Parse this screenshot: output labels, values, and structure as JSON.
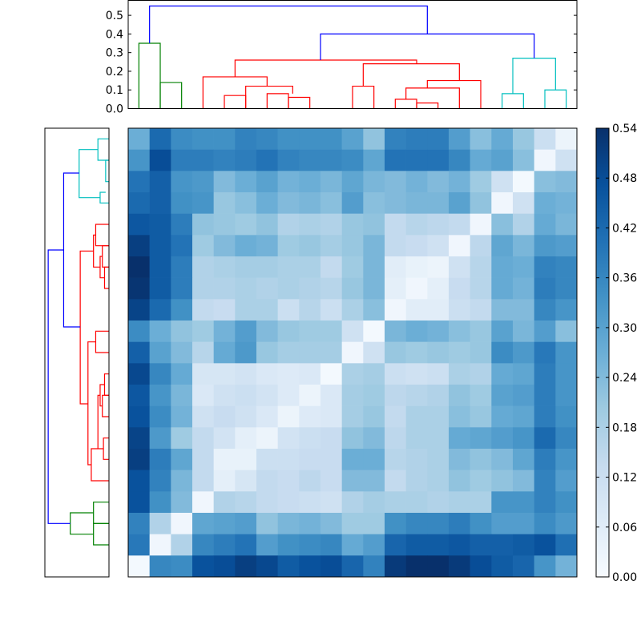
{
  "chart_data": {
    "type": "heatmap",
    "title": "",
    "xlabel": "",
    "ylabel": "",
    "colormap": "Blues",
    "n": 21,
    "colorbar": {
      "range": [
        0.0,
        0.54
      ],
      "ticks": [
        "0.00",
        "0.06",
        "0.12",
        "0.18",
        "0.24",
        "0.30",
        "0.36",
        "0.42",
        "0.48",
        "0.54"
      ]
    },
    "top_dendrogram": {
      "ylim": [
        0.0,
        0.58
      ],
      "ticks": [
        "0.0",
        "0.1",
        "0.2",
        "0.3",
        "0.4",
        "0.5"
      ],
      "links": [
        {
          "lx": 0.5,
          "ly": 0.0,
          "rx": 1.5,
          "ry": 0.0,
          "h": 0.35,
          "color": "#008000"
        },
        {
          "lx": 1.5,
          "ly": 0.0,
          "rx": 2.5,
          "ry": 0.0,
          "h": 0.14,
          "color": "#008000"
        },
        {
          "lx": 4.5,
          "ly": 0.0,
          "rx": 5.5,
          "ry": 0.0,
          "h": 0.07,
          "color": "#ff0000"
        },
        {
          "lx": 6.5,
          "ly": 0.0,
          "rx": 7.5,
          "ry": 0.0,
          "h": 0.08,
          "color": "#ff0000"
        },
        {
          "lx": 7.5,
          "ly": 0.0,
          "rx": 8.5,
          "ry": 0.0,
          "h": 0.06,
          "color": "#ff0000"
        },
        {
          "lx": 5.5,
          "ly": 0.0,
          "rx": 7.7,
          "ry": 0.08,
          "h": 0.12,
          "color": "#ff0000"
        },
        {
          "lx": 3.5,
          "ly": 0.0,
          "rx": 6.5,
          "ry": 0.12,
          "h": 0.17,
          "color": "#ff0000"
        },
        {
          "lx": 10.5,
          "ly": 0.0,
          "rx": 11.5,
          "ry": 0.0,
          "h": 0.12,
          "color": "#ff0000"
        },
        {
          "lx": 12.5,
          "ly": 0.0,
          "rx": 13.5,
          "ry": 0.0,
          "h": 0.05,
          "color": "#ff0000"
        },
        {
          "lx": 13.5,
          "ly": 0.0,
          "rx": 14.5,
          "ry": 0.0,
          "h": 0.03,
          "color": "#ff0000"
        },
        {
          "lx": 13.0,
          "ly": 0.05,
          "rx": 15.5,
          "ry": 0.0,
          "h": 0.11,
          "color": "#ff0000"
        },
        {
          "lx": 14.0,
          "ly": 0.11,
          "rx": 16.5,
          "ry": 0.0,
          "h": 0.15,
          "color": "#ff0000"
        },
        {
          "lx": 11.0,
          "ly": 0.12,
          "rx": 15.5,
          "ry": 0.15,
          "h": 0.24,
          "color": "#ff0000"
        },
        {
          "lx": 5.0,
          "ly": 0.17,
          "rx": 13.5,
          "ry": 0.24,
          "h": 0.26,
          "color": "#ff0000"
        },
        {
          "lx": 17.5,
          "ly": 0.0,
          "rx": 18.5,
          "ry": 0.0,
          "h": 0.08,
          "color": "#00bfbf"
        },
        {
          "lx": 19.5,
          "ly": 0.0,
          "rx": 20.5,
          "ry": 0.0,
          "h": 0.1,
          "color": "#00bfbf"
        },
        {
          "lx": 18.0,
          "ly": 0.08,
          "rx": 20.0,
          "ry": 0.1,
          "h": 0.27,
          "color": "#00bfbf"
        },
        {
          "lx": 9.0,
          "ly": 0.26,
          "rx": 19.0,
          "ry": 0.27,
          "h": 0.4,
          "color": "#0000ff"
        },
        {
          "lx": 1.0,
          "ly": 0.35,
          "rx": 14.0,
          "ry": 0.4,
          "h": 0.55,
          "color": "#0000ff"
        }
      ]
    },
    "left_dendrogram": {
      "xlim": [
        0.0,
        0.58
      ],
      "links": [
        {
          "a": 0.5,
          "ha": 0.0,
          "b": 1.5,
          "hb": 0.0,
          "h": 0.1,
          "color": "#00bfbf"
        },
        {
          "a": 1.5,
          "ha": 0.0,
          "b": 2.5,
          "hb": 0.0,
          "h": 0.03,
          "color": "#00bfbf"
        },
        {
          "a": 3.0,
          "ha": 0.03,
          "b": 3.5,
          "hb": 0.0,
          "h": 0.08,
          "color": "#00bfbf"
        },
        {
          "a": 1.0,
          "ha": 0.1,
          "b": 3.25,
          "hb": 0.08,
          "h": 0.27,
          "color": "#00bfbf"
        },
        {
          "a": 4.5,
          "ha": 0.0,
          "b": 5.5,
          "hb": 0.0,
          "h": 0.12,
          "color": "#ff0000"
        },
        {
          "a": 5.5,
          "ha": 0.0,
          "b": 6.5,
          "hb": 0.0,
          "h": 0.06,
          "color": "#ff0000"
        },
        {
          "a": 6.5,
          "ha": 0.0,
          "b": 7.5,
          "hb": 0.0,
          "h": 0.04,
          "color": "#ff0000"
        },
        {
          "a": 6.0,
          "ha": 0.06,
          "b": 7.0,
          "hb": 0.04,
          "h": 0.08,
          "color": "#ff0000"
        },
        {
          "a": 5.0,
          "ha": 0.12,
          "b": 6.5,
          "hb": 0.08,
          "h": 0.14,
          "color": "#ff0000"
        },
        {
          "a": 9.5,
          "ha": 0.0,
          "b": 10.5,
          "hb": 0.0,
          "h": 0.12,
          "color": "#ff0000"
        },
        {
          "a": 11.5,
          "ha": 0.0,
          "b": 12.5,
          "hb": 0.0,
          "h": 0.04,
          "color": "#ff0000"
        },
        {
          "a": 12.5,
          "ha": 0.0,
          "b": 13.5,
          "hb": 0.0,
          "h": 0.06,
          "color": "#ff0000"
        },
        {
          "a": 12.0,
          "ha": 0.04,
          "b": 13.0,
          "hb": 0.06,
          "h": 0.08,
          "color": "#ff0000"
        },
        {
          "a": 14.5,
          "ha": 0.0,
          "b": 15.5,
          "hb": 0.0,
          "h": 0.05,
          "color": "#ff0000"
        },
        {
          "a": 12.5,
          "ha": 0.08,
          "b": 15.0,
          "hb": 0.05,
          "h": 0.1,
          "color": "#ff0000"
        },
        {
          "a": 16.5,
          "ha": 0.0,
          "b": 15.0,
          "hb": 0.1,
          "h": 0.16,
          "color": "#ff0000"
        },
        {
          "a": 10.0,
          "ha": 0.12,
          "b": 15.75,
          "hb": 0.16,
          "h": 0.19,
          "color": "#ff0000"
        },
        {
          "a": 5.75,
          "ha": 0.14,
          "b": 12.9,
          "hb": 0.19,
          "h": 0.26,
          "color": "#ff0000"
        },
        {
          "a": 2.1,
          "ha": 0.27,
          "b": 9.3,
          "hb": 0.26,
          "h": 0.41,
          "color": "#0000ff"
        },
        {
          "a": 17.5,
          "ha": 0.0,
          "b": 18.5,
          "hb": 0.0,
          "h": 0.14,
          "color": "#008000"
        },
        {
          "a": 18.5,
          "ha": 0.0,
          "b": 19.5,
          "hb": 0.0,
          "h": 0.14,
          "color": "#008000"
        },
        {
          "a": 18.0,
          "ha": 0.14,
          "b": 19.0,
          "hb": 0.14,
          "h": 0.35,
          "color": "#008000"
        },
        {
          "a": 5.7,
          "ha": 0.41,
          "b": 18.5,
          "hb": 0.35,
          "h": 0.55,
          "color": "#0000ff"
        }
      ]
    },
    "matrix": [
      [
        0.27,
        0.42,
        0.35,
        0.34,
        0.34,
        0.37,
        0.36,
        0.34,
        0.34,
        0.34,
        0.3,
        0.22,
        0.37,
        0.38,
        0.38,
        0.31,
        0.23,
        0.28,
        0.21,
        0.12,
        0.03
      ],
      [
        0.33,
        0.48,
        0.38,
        0.38,
        0.37,
        0.38,
        0.4,
        0.37,
        0.36,
        0.36,
        0.35,
        0.29,
        0.4,
        0.4,
        0.4,
        0.36,
        0.28,
        0.3,
        0.23,
        0.02,
        0.11
      ],
      [
        0.4,
        0.44,
        0.33,
        0.32,
        0.24,
        0.27,
        0.3,
        0.26,
        0.27,
        0.25,
        0.29,
        0.25,
        0.24,
        0.26,
        0.24,
        0.26,
        0.2,
        0.11,
        0.01,
        0.23,
        0.24
      ],
      [
        0.42,
        0.44,
        0.34,
        0.33,
        0.21,
        0.23,
        0.27,
        0.24,
        0.25,
        0.23,
        0.31,
        0.23,
        0.24,
        0.25,
        0.25,
        0.3,
        0.22,
        0.02,
        0.11,
        0.27,
        0.26
      ],
      [
        0.46,
        0.45,
        0.38,
        0.22,
        0.21,
        0.2,
        0.22,
        0.17,
        0.18,
        0.17,
        0.21,
        0.22,
        0.14,
        0.16,
        0.15,
        0.14,
        0.02,
        0.23,
        0.17,
        0.28,
        0.25
      ],
      [
        0.51,
        0.45,
        0.4,
        0.2,
        0.24,
        0.27,
        0.26,
        0.2,
        0.21,
        0.19,
        0.21,
        0.25,
        0.14,
        0.13,
        0.11,
        0.02,
        0.15,
        0.29,
        0.25,
        0.32,
        0.31
      ],
      [
        0.54,
        0.45,
        0.38,
        0.17,
        0.18,
        0.19,
        0.19,
        0.18,
        0.18,
        0.14,
        0.2,
        0.25,
        0.06,
        0.04,
        0.03,
        0.11,
        0.16,
        0.28,
        0.27,
        0.37,
        0.36
      ],
      [
        0.53,
        0.45,
        0.38,
        0.17,
        0.17,
        0.18,
        0.17,
        0.18,
        0.17,
        0.16,
        0.21,
        0.25,
        0.05,
        0.02,
        0.05,
        0.13,
        0.16,
        0.28,
        0.26,
        0.38,
        0.36
      ],
      [
        0.5,
        0.42,
        0.34,
        0.14,
        0.13,
        0.18,
        0.18,
        0.12,
        0.16,
        0.12,
        0.18,
        0.23,
        0.02,
        0.06,
        0.06,
        0.12,
        0.14,
        0.24,
        0.24,
        0.36,
        0.33
      ],
      [
        0.35,
        0.27,
        0.22,
        0.2,
        0.26,
        0.31,
        0.24,
        0.21,
        0.2,
        0.2,
        0.11,
        0.01,
        0.25,
        0.27,
        0.26,
        0.23,
        0.21,
        0.3,
        0.25,
        0.31,
        0.23
      ],
      [
        0.44,
        0.3,
        0.24,
        0.16,
        0.28,
        0.32,
        0.21,
        0.19,
        0.19,
        0.19,
        0.02,
        0.11,
        0.21,
        0.2,
        0.21,
        0.2,
        0.21,
        0.35,
        0.32,
        0.39,
        0.33
      ],
      [
        0.49,
        0.36,
        0.28,
        0.09,
        0.09,
        0.1,
        0.08,
        0.07,
        0.08,
        0.01,
        0.18,
        0.19,
        0.12,
        0.11,
        0.12,
        0.18,
        0.17,
        0.28,
        0.29,
        0.38,
        0.33
      ],
      [
        0.46,
        0.33,
        0.25,
        0.08,
        0.11,
        0.12,
        0.1,
        0.07,
        0.03,
        0.08,
        0.19,
        0.2,
        0.15,
        0.16,
        0.17,
        0.22,
        0.2,
        0.3,
        0.31,
        0.38,
        0.33
      ],
      [
        0.47,
        0.35,
        0.26,
        0.11,
        0.13,
        0.11,
        0.08,
        0.03,
        0.07,
        0.08,
        0.19,
        0.21,
        0.14,
        0.18,
        0.18,
        0.23,
        0.21,
        0.28,
        0.29,
        0.38,
        0.34
      ],
      [
        0.5,
        0.32,
        0.2,
        0.14,
        0.1,
        0.05,
        0.03,
        0.1,
        0.12,
        0.13,
        0.22,
        0.24,
        0.15,
        0.18,
        0.18,
        0.28,
        0.29,
        0.31,
        0.33,
        0.42,
        0.36
      ],
      [
        0.51,
        0.38,
        0.29,
        0.14,
        0.04,
        0.04,
        0.12,
        0.12,
        0.13,
        0.13,
        0.27,
        0.27,
        0.16,
        0.17,
        0.18,
        0.24,
        0.22,
        0.24,
        0.29,
        0.38,
        0.33
      ],
      [
        0.47,
        0.37,
        0.25,
        0.14,
        0.05,
        0.09,
        0.14,
        0.13,
        0.15,
        0.13,
        0.24,
        0.24,
        0.14,
        0.17,
        0.18,
        0.22,
        0.2,
        0.22,
        0.24,
        0.37,
        0.31
      ],
      [
        0.47,
        0.34,
        0.24,
        0.02,
        0.17,
        0.16,
        0.14,
        0.13,
        0.12,
        0.11,
        0.17,
        0.19,
        0.18,
        0.18,
        0.17,
        0.18,
        0.18,
        0.33,
        0.33,
        0.37,
        0.34
      ],
      [
        0.37,
        0.17,
        0.02,
        0.29,
        0.3,
        0.31,
        0.22,
        0.25,
        0.26,
        0.24,
        0.2,
        0.2,
        0.34,
        0.36,
        0.36,
        0.38,
        0.34,
        0.31,
        0.31,
        0.35,
        0.32
      ],
      [
        0.39,
        0.02,
        0.17,
        0.36,
        0.38,
        0.4,
        0.31,
        0.34,
        0.35,
        0.36,
        0.28,
        0.31,
        0.43,
        0.45,
        0.45,
        0.46,
        0.44,
        0.44,
        0.45,
        0.47,
        0.41
      ],
      [
        0.01,
        0.36,
        0.35,
        0.47,
        0.48,
        0.51,
        0.49,
        0.45,
        0.47,
        0.48,
        0.43,
        0.37,
        0.52,
        0.54,
        0.54,
        0.52,
        0.48,
        0.45,
        0.43,
        0.33,
        0.26
      ]
    ]
  }
}
